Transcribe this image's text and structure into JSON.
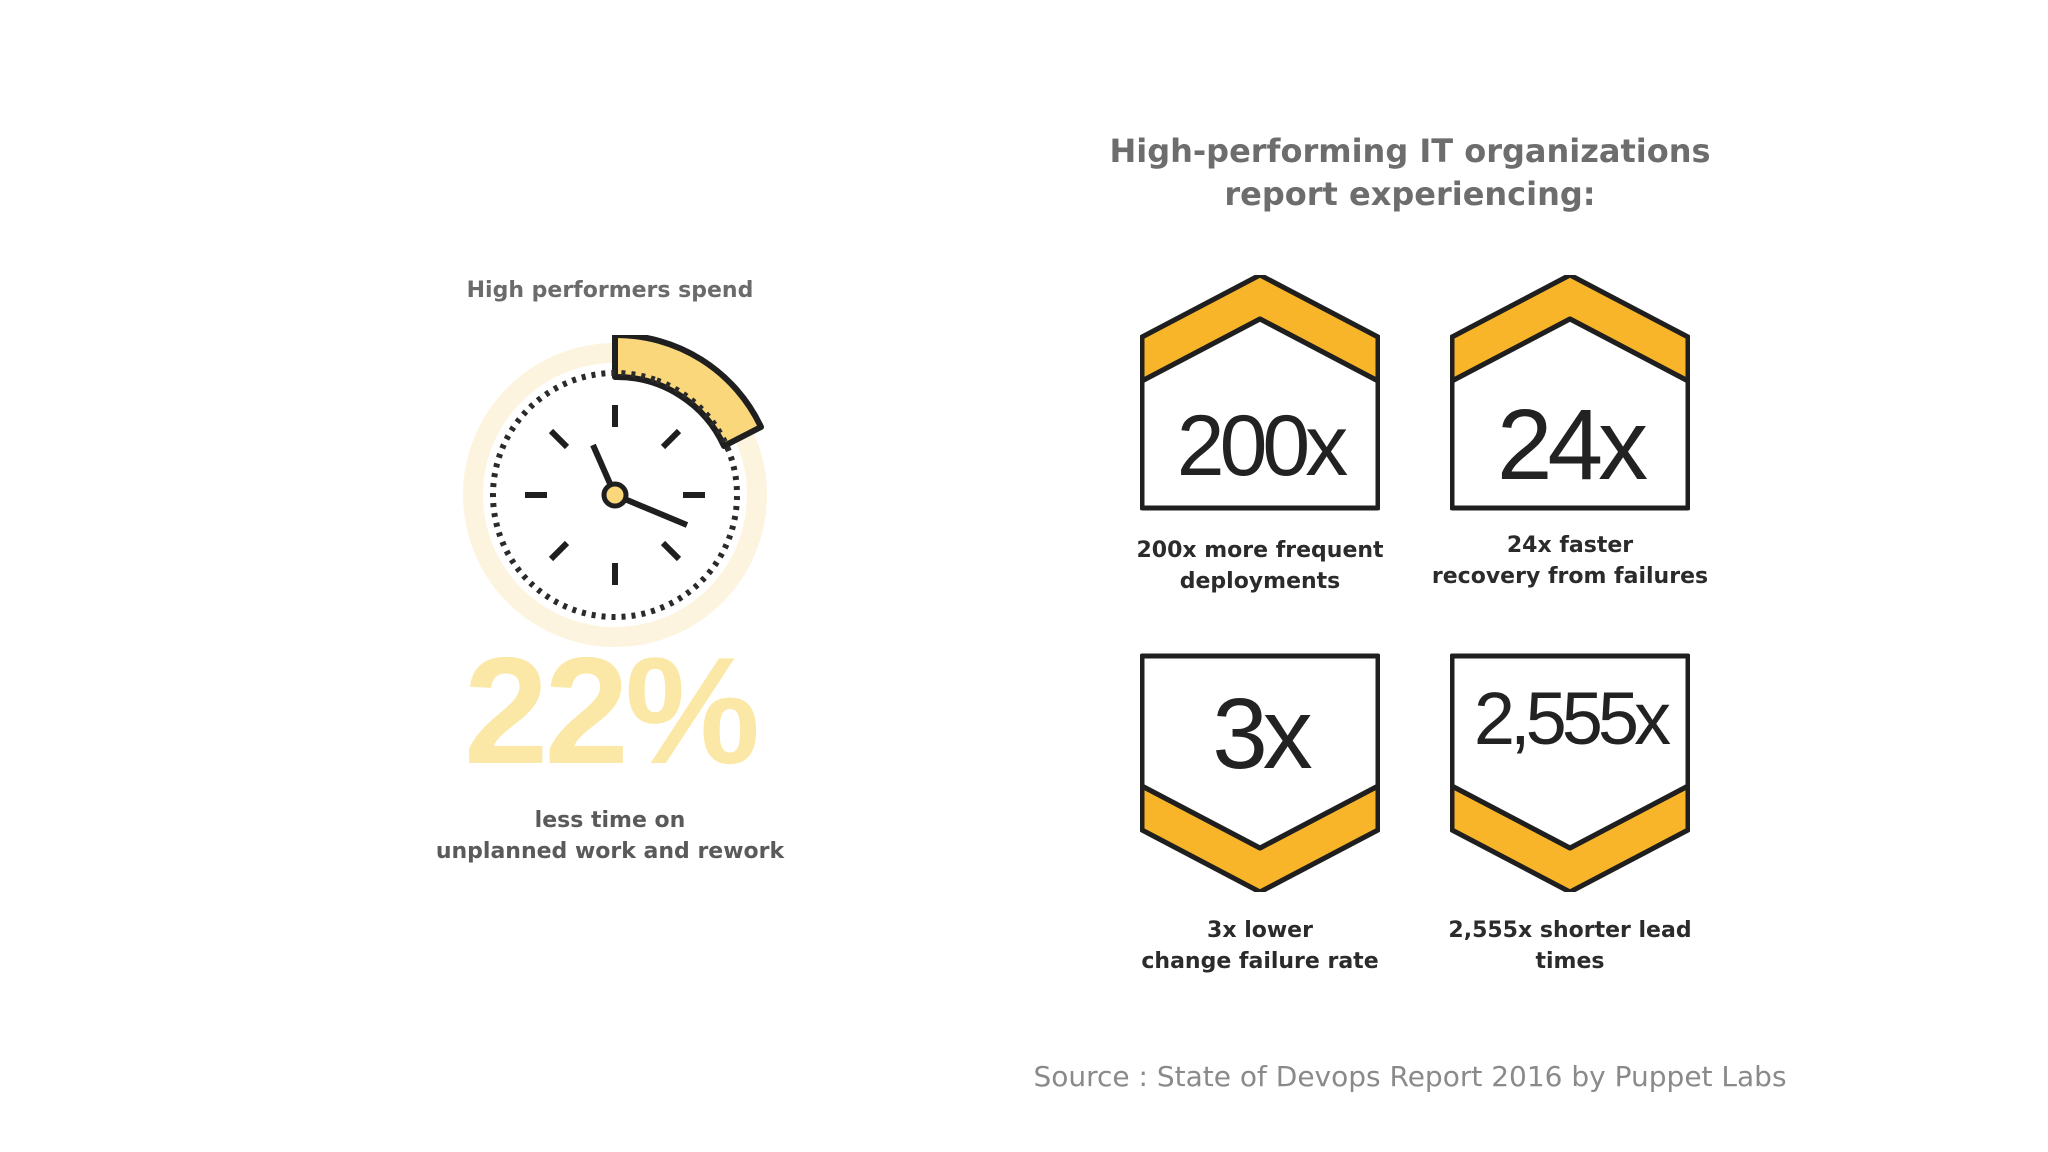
{
  "left": {
    "title": "High performers spend",
    "stat": "22%",
    "caption_line1": "less time on",
    "caption_line2": "unplanned work and rework"
  },
  "right": {
    "title_line1": "High-performing IT organizations",
    "title_line2": "report experiencing:",
    "badges": [
      {
        "value": "200x",
        "caption_line1": "200x more frequent",
        "caption_line2": "deployments"
      },
      {
        "value": "24x",
        "caption_line1": "24x faster",
        "caption_line2": "recovery from failures"
      },
      {
        "value": "3x",
        "caption_line1": "3x lower",
        "caption_line2": "change failure rate"
      },
      {
        "value": "2,555x",
        "caption_line1": "2,555x shorter lead",
        "caption_line2": "times"
      }
    ]
  },
  "source": "Source : State of Devops Report 2016 by Puppet Labs",
  "colors": {
    "accent": "#f9b52a",
    "accent_light": "#fbe8a6",
    "ink": "#1f1f1f"
  }
}
